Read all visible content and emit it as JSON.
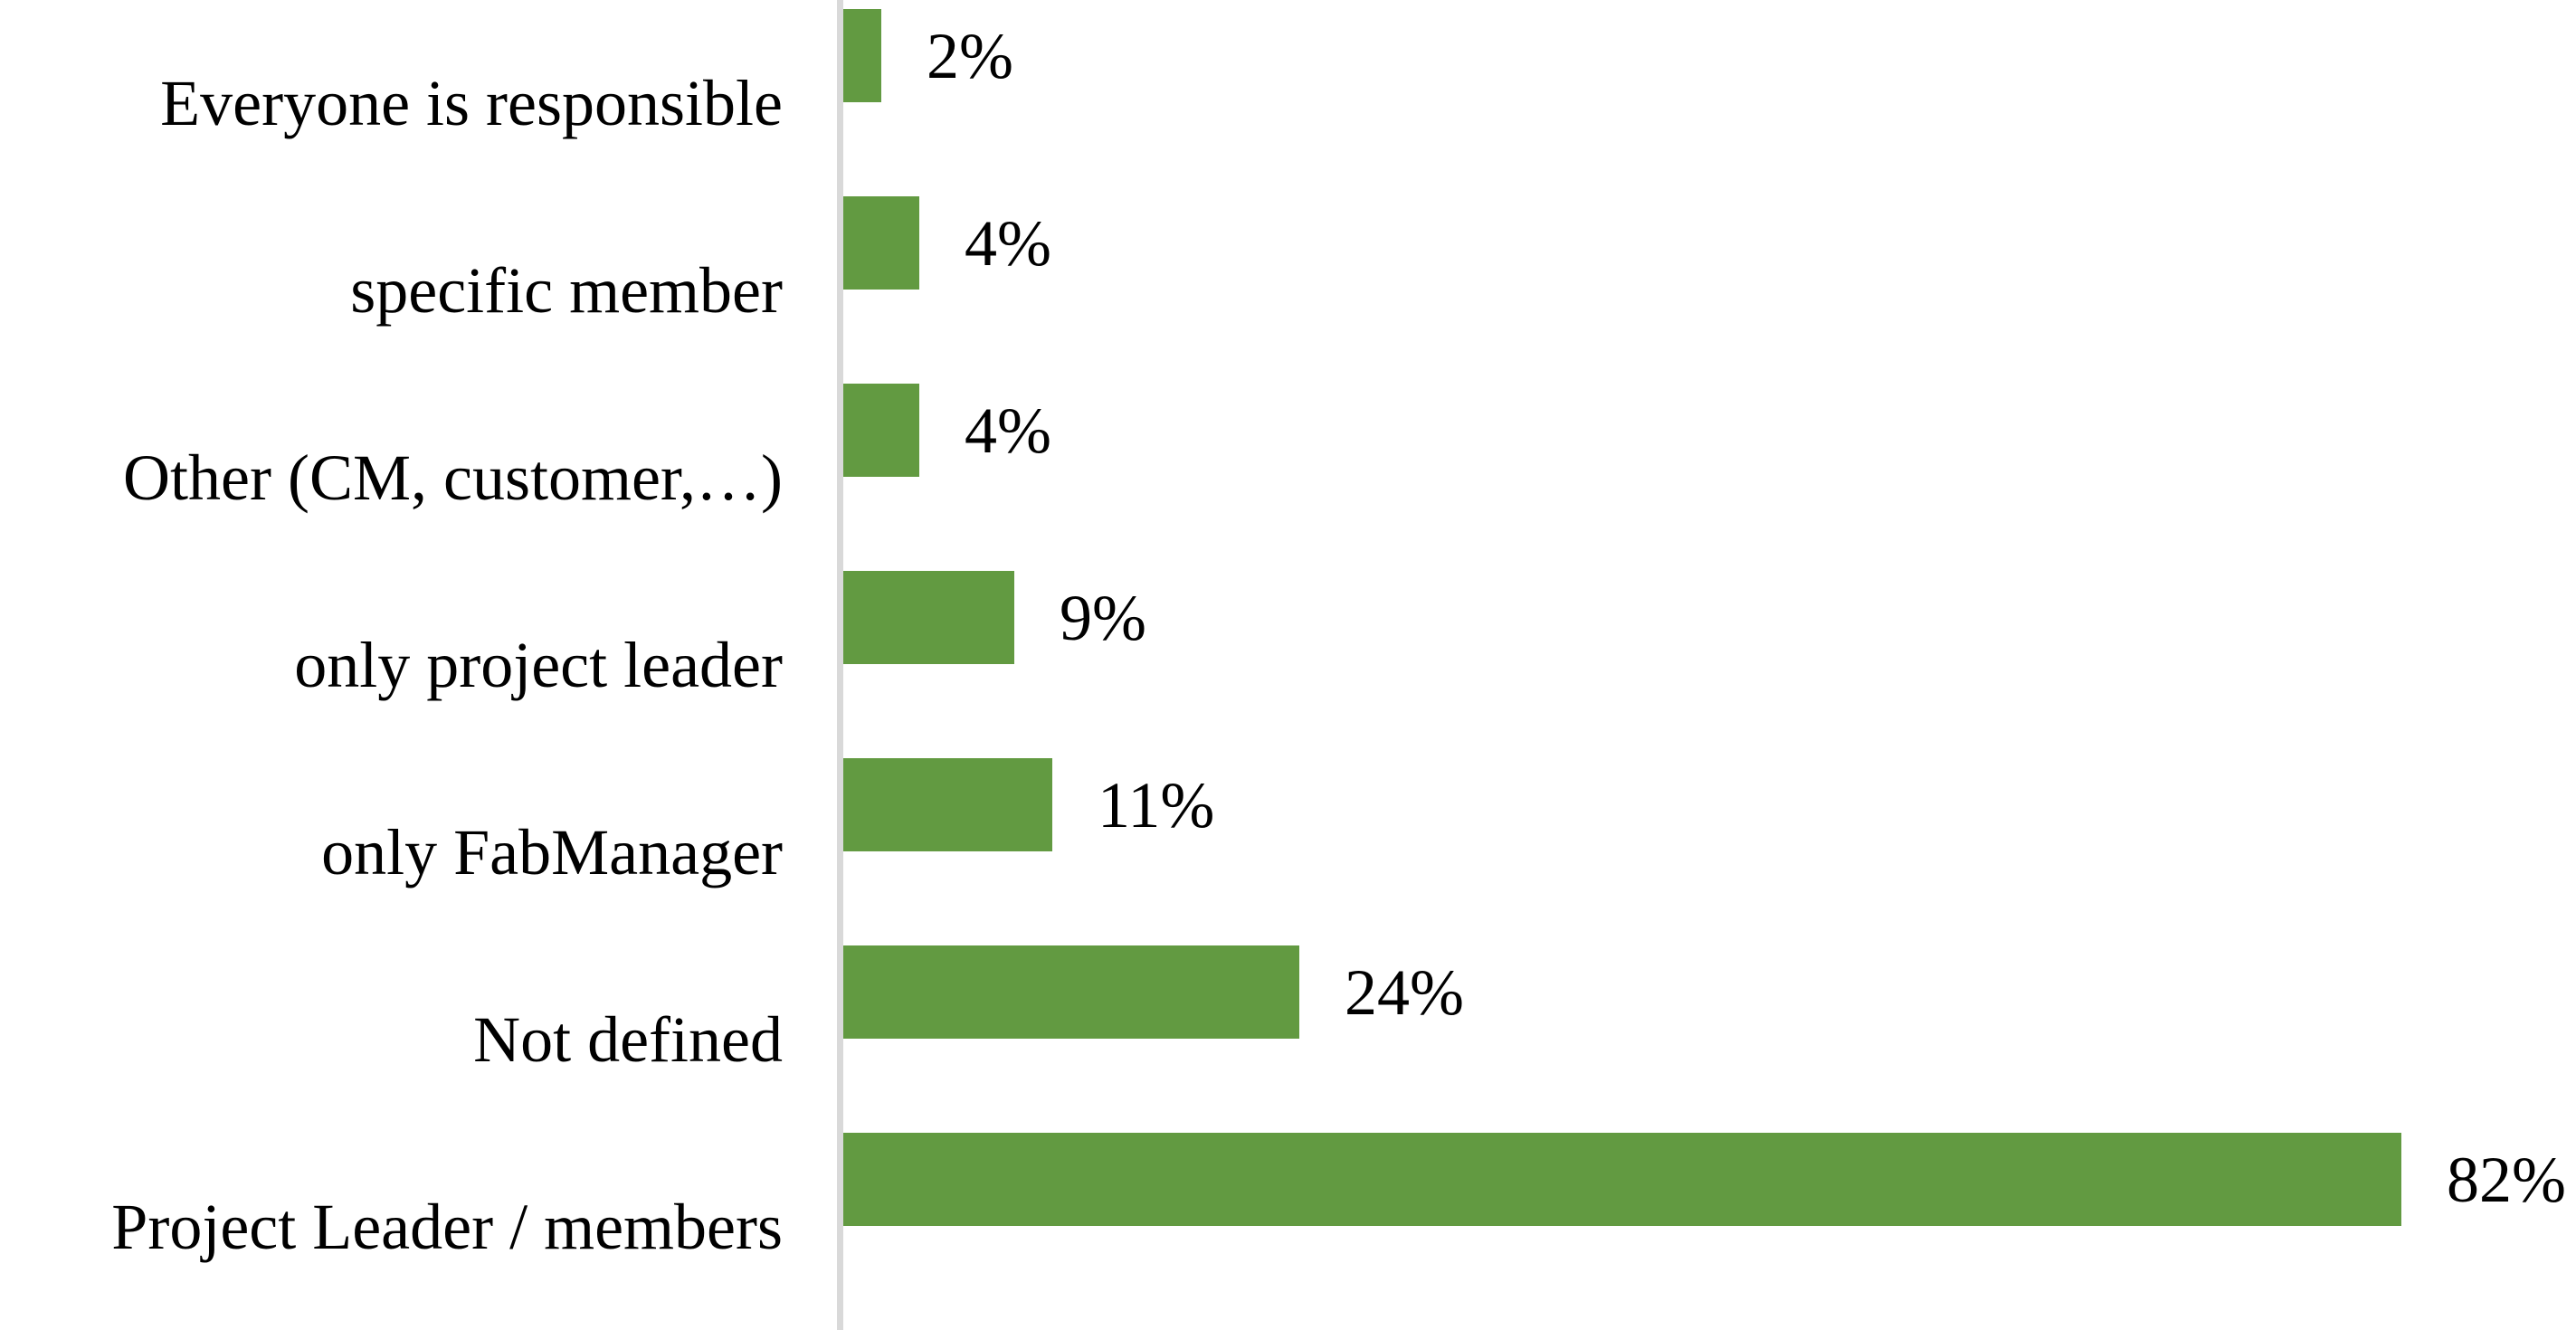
{
  "chart_data": {
    "type": "bar",
    "orientation": "horizontal",
    "title": "",
    "xlabel": "",
    "ylabel": "",
    "categories": [
      "Everyone is responsible",
      "specific member",
      "Other (CM, customer,…)",
      "only project leader",
      "only FabManager",
      "Not defined",
      "Project Leader / members"
    ],
    "values": [
      2,
      4,
      4,
      9,
      11,
      24,
      82
    ],
    "value_labels": [
      "2%",
      "4%",
      "4%",
      "9%",
      "11%",
      "24%",
      "82%"
    ],
    "unit": "percent",
    "xlim": [
      0,
      100
    ],
    "grid": false,
    "legend": false,
    "colors": {
      "bar": "#629A41",
      "axis_line": "#D9D9D9",
      "text": "#000000",
      "background": "#FFFFFF"
    }
  }
}
